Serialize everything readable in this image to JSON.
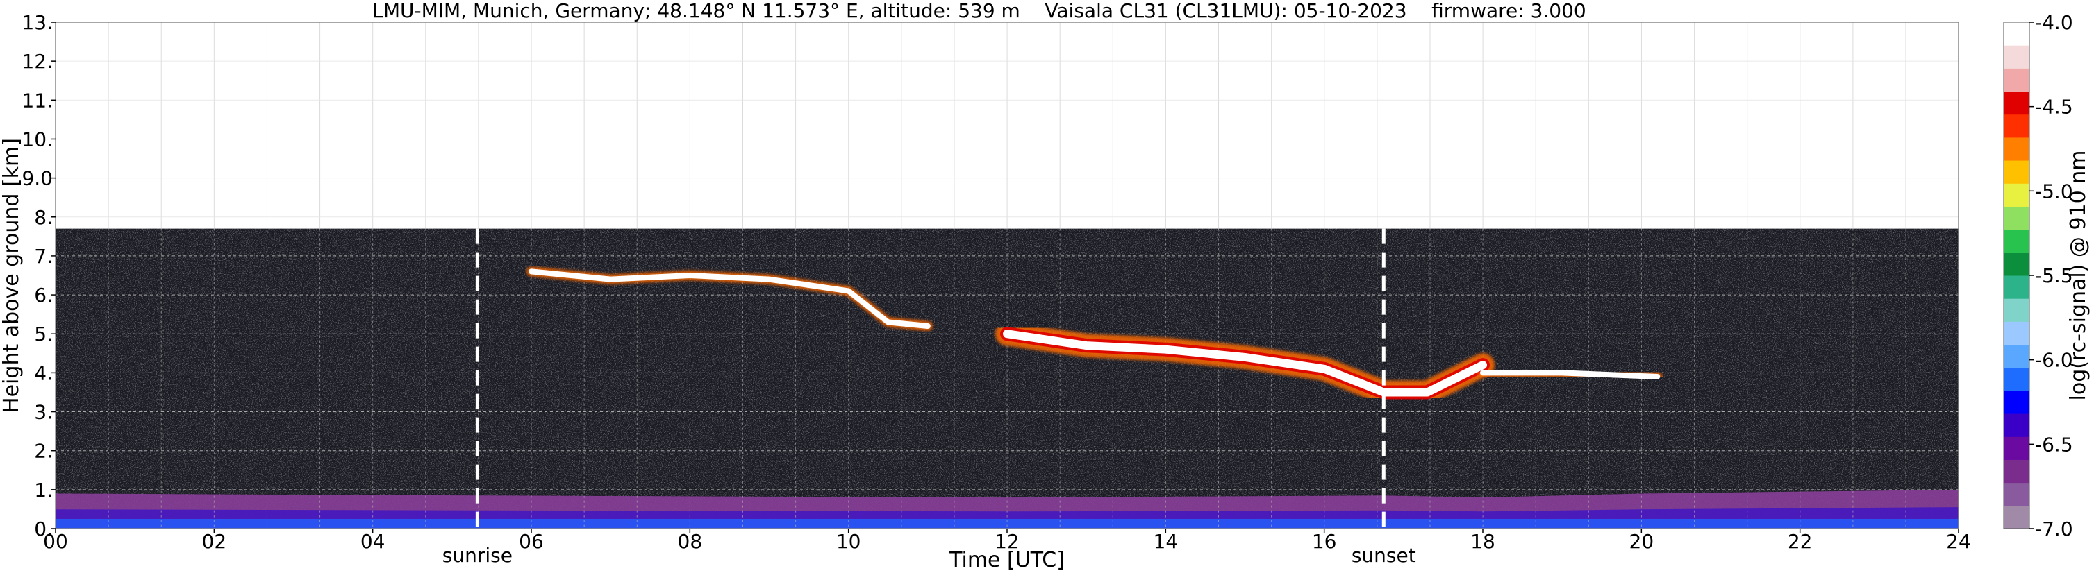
{
  "chart_data": {
    "type": "heatmap",
    "title": "LMU-MIM, Munich, Germany; 48.148° N 11.573° E, altitude: 539 m    Vaisala CL31 (CL31LMU): 05-10-2023    firmware: 3.000",
    "xlabel": "Time [UTC]",
    "ylabel": "Height above ground [km]",
    "colorbar_label": "log(rc-signal) @ 910 nm",
    "xlim": [
      0,
      24
    ],
    "ylim": [
      0,
      13
    ],
    "x_ticks": [
      "00",
      "02",
      "04",
      "06",
      "08",
      "10",
      "12",
      "14",
      "16",
      "18",
      "20",
      "22",
      "24"
    ],
    "x_tick_values": [
      0,
      2,
      4,
      6,
      8,
      10,
      12,
      14,
      16,
      18,
      20,
      22,
      24
    ],
    "y_ticks": [
      "0.",
      "1.",
      "2.",
      "3.",
      "4.",
      "5.",
      "6.",
      "7.",
      "8.",
      "9.0",
      "10.",
      "11.",
      "12.",
      "13."
    ],
    "y_tick_values": [
      0,
      1,
      2,
      3,
      4,
      5,
      6,
      7,
      8,
      9,
      10,
      11,
      12,
      13
    ],
    "colorbar_ticks": [
      "-4.0",
      "-4.5",
      "-5.0",
      "-5.5",
      "-6.0",
      "-6.5",
      "-7.0"
    ],
    "colorbar_tick_values": [
      -4.0,
      -4.5,
      -5.0,
      -5.5,
      -6.0,
      -6.5,
      -7.0
    ],
    "colorbar_range": [
      -7.0,
      -4.0
    ],
    "measurement_top_km": 7.7,
    "events": [
      {
        "label": "sunrise",
        "time_utc": 5.32
      },
      {
        "label": "sunset",
        "time_utc": 16.75
      }
    ],
    "cloud_layers": [
      {
        "kind": "cloud",
        "points": [
          [
            6.0,
            6.6
          ],
          [
            7.0,
            6.4
          ],
          [
            8.0,
            6.5
          ],
          [
            9.0,
            6.4
          ],
          [
            10.0,
            6.1
          ],
          [
            10.5,
            5.3
          ],
          [
            11.0,
            5.2
          ]
        ]
      },
      {
        "kind": "cloud",
        "points": [
          [
            12.0,
            5.0
          ],
          [
            13.0,
            4.7
          ],
          [
            14.0,
            4.6
          ],
          [
            15.0,
            4.4
          ],
          [
            16.0,
            4.1
          ],
          [
            16.75,
            3.5
          ],
          [
            17.3,
            3.5
          ],
          [
            18.0,
            4.2
          ]
        ]
      },
      {
        "kind": "cloud",
        "points": [
          [
            18.0,
            4.0
          ],
          [
            19.0,
            4.0
          ],
          [
            20.2,
            3.9
          ]
        ]
      }
    ],
    "boundary_layer": [
      [
        0,
        0.9
      ],
      [
        5.3,
        0.85
      ],
      [
        12,
        0.8
      ],
      [
        16.75,
        0.85
      ],
      [
        18,
        0.8
      ],
      [
        20,
        0.9
      ],
      [
        24,
        1.0
      ]
    ],
    "grid": true,
    "colormap": [
      "#a08aa8",
      "#8a5a9e",
      "#7b2d8e",
      "#6a0aa0",
      "#3a00c8",
      "#0000ff",
      "#1e6dff",
      "#5aa7ff",
      "#9ac8ff",
      "#7fd3c8",
      "#2db38a",
      "#0b8f3c",
      "#28c24e",
      "#8fe060",
      "#e8f040",
      "#ffc000",
      "#ff8000",
      "#ff3000",
      "#e00000",
      "#f0a8a8",
      "#f4dada",
      "#ffffff"
    ]
  }
}
